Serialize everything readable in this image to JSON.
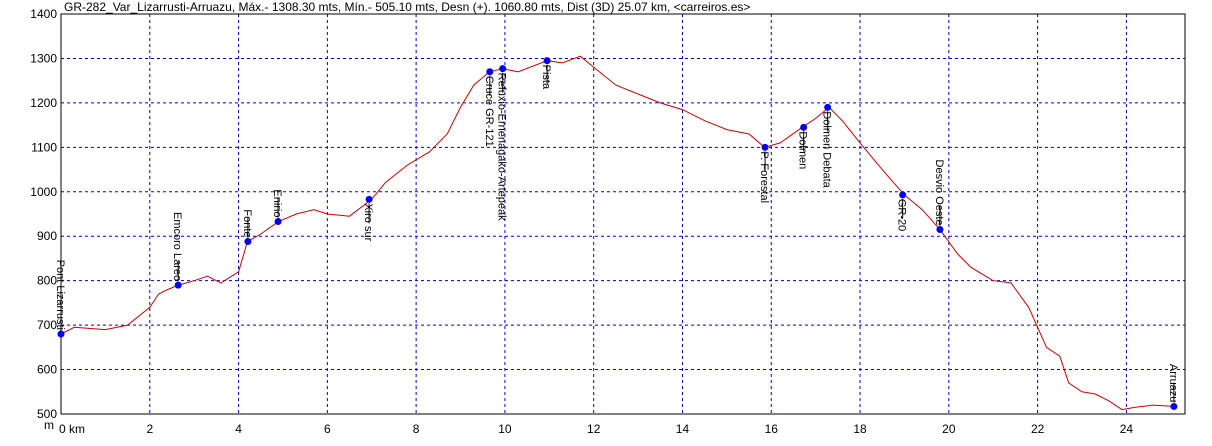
{
  "chart_data": {
    "type": "line",
    "title": "GR-282_Var_Lizarrusti-Arruazu, Máx.- 1308.30 mts, Mín.- 505.10 mts, Desn (+). 1060.80 mts, Dist (3D) 25.07 km, <carreiros.es>",
    "y_label": "m",
    "x": [
      0,
      0.3,
      1,
      1.5,
      2,
      2.2,
      2.4,
      2.65,
      3,
      3.3,
      3.6,
      4,
      4.2,
      4.5,
      4.9,
      5.3,
      5.7,
      6,
      6.5,
      7,
      7.3,
      7.8,
      8.3,
      8.7,
      9,
      9.3,
      9.65,
      9.95,
      10.3,
      10.95,
      11.3,
      11.7,
      12,
      12.5,
      13,
      13.5,
      14,
      14.5,
      15,
      15.5,
      15.85,
      16.2,
      16.7,
      17,
      17.3,
      17.6,
      18,
      18.5,
      19,
      19.4,
      19.8,
      20.2,
      20.5,
      21,
      21.4,
      21.8,
      22.2,
      22.5,
      22.7,
      23,
      23.3,
      23.6,
      23.9,
      24.2,
      24.6,
      25.07
    ],
    "series": [
      {
        "color": "#cc0000",
        "values": [
          680,
          695,
          690,
          700,
          740,
          770,
          780,
          790,
          800,
          810,
          795,
          820,
          888,
          905,
          933,
          950,
          960,
          950,
          945,
          983,
          1020,
          1060,
          1090,
          1130,
          1190,
          1240,
          1270,
          1277,
          1270,
          1295,
          1290,
          1305,
          1280,
          1240,
          1220,
          1200,
          1185,
          1160,
          1140,
          1130,
          1100,
          1110,
          1145,
          1165,
          1190,
          1160,
          1110,
          1050,
          993,
          960,
          915,
          860,
          830,
          800,
          795,
          740,
          650,
          630,
          570,
          550,
          545,
          530,
          510,
          515,
          520,
          517
        ]
      }
    ],
    "waypoints": {
      "color": "#0000ee",
      "names": [
        "Pont Lizarrusti",
        "Emcoro Lareo",
        "Fonte",
        "Enirio",
        "Xiro sur",
        "Cruce GR-121",
        "Refuxio-Ernenagako-Artepeak",
        "Pista",
        "P. Forestal",
        "Dolmen",
        "Dolmen Debata",
        "GR-20",
        "Desvio Oeste",
        "Arruazu"
      ],
      "x": [
        0,
        2.64,
        4.21,
        4.89,
        6.94,
        9.66,
        9.95,
        10.95,
        15.86,
        16.73,
        17.27,
        18.96,
        19.8,
        25.07
      ],
      "values": [
        680,
        790,
        888,
        933,
        983,
        1270,
        1277,
        1295,
        1100,
        1145,
        1190,
        993,
        915,
        517
      ],
      "label_side": [
        "above",
        "above",
        "above",
        "above",
        "below",
        "below",
        "below",
        "below",
        "below",
        "below",
        "below",
        "below",
        "above",
        "above"
      ]
    },
    "xlim": [
      0,
      25.32
    ],
    "ylim": [
      500,
      1400
    ],
    "xticks": [
      {
        "value": 0,
        "label": "0 km"
      },
      2,
      4,
      6,
      8,
      10,
      12,
      14,
      16,
      18,
      20,
      22,
      24
    ],
    "yticks": [
      500,
      600,
      700,
      800,
      900,
      1000,
      1100,
      1200,
      1300,
      1400
    ],
    "grid": true,
    "grid_color": "#0000cc"
  }
}
